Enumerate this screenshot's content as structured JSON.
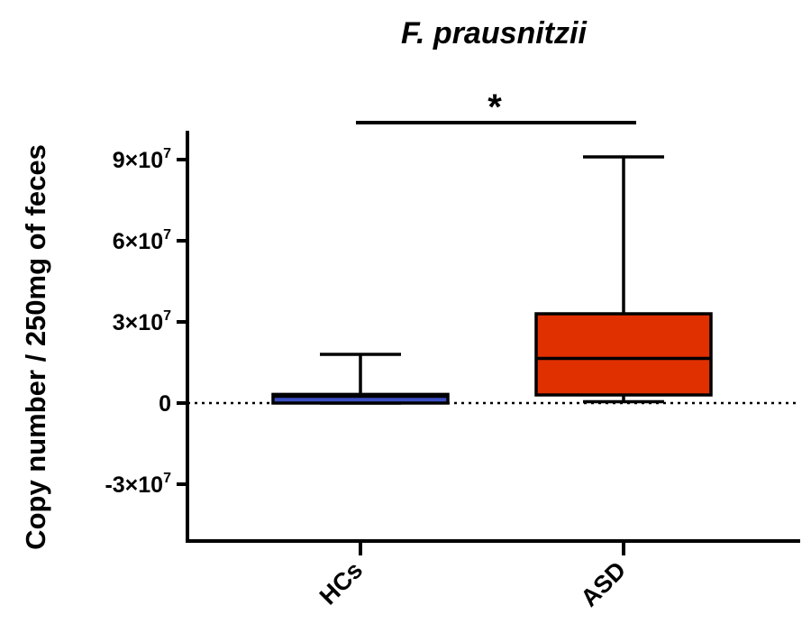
{
  "chart_data": {
    "type": "box",
    "title": "F. prausnitzii",
    "xlabel": "",
    "ylabel": "Copy number / 250mg of feces",
    "ylim": [
      -45000000,
      100000000
    ],
    "yticks": [
      {
        "value": 90000000,
        "mantissa": "9×10",
        "exp": "7"
      },
      {
        "value": 60000000,
        "mantissa": "6×10",
        "exp": "7"
      },
      {
        "value": 30000000,
        "mantissa": "3×10",
        "exp": "7"
      },
      {
        "value": 0,
        "mantissa": "0",
        "exp": ""
      },
      {
        "value": -30000000,
        "mantissa": "-3×10",
        "exp": "7"
      }
    ],
    "categories": [
      "HCs",
      "ASD"
    ],
    "series": [
      {
        "category": "HCs",
        "min": 0,
        "q1": 0,
        "median": 2500000,
        "q3": 3200000,
        "max": 18000000,
        "color": "#3a4fc4"
      },
      {
        "category": "ASD",
        "min": 500000,
        "q1": 3000000,
        "median": 16500000,
        "q3": 33000000,
        "max": 91000000,
        "color": "#e03000"
      }
    ],
    "reference_line": 0,
    "significance": {
      "from": "HCs",
      "to": "ASD",
      "label": "*"
    },
    "grid": false
  }
}
